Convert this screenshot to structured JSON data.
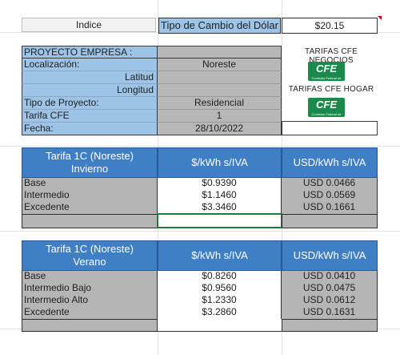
{
  "header": {
    "indice_label": "Indice",
    "exchange_label": "Tipo de Cambio del Dólar",
    "exchange_value": "$20.15"
  },
  "project": {
    "title": "PROYECTO EMPRESA :",
    "rows": [
      {
        "label": "Localización:",
        "value": "Noreste"
      },
      {
        "label": "Latitud",
        "value": ""
      },
      {
        "label": "Longitud",
        "value": ""
      },
      {
        "label": "Tipo de Proyecto:",
        "value": "Residencial"
      },
      {
        "label": "Tarifa CFE",
        "value": "1"
      },
      {
        "label": "Fecha:",
        "value": "28/10/2022"
      }
    ]
  },
  "cfe": {
    "negocios_label": "TARIFAS CFE NEGOCIOS",
    "hogar_label": "TARIFAS CFE HOGAR",
    "logo_text": "CFE",
    "logo_subtext": "Comisión Federal de Electricidad"
  },
  "invierno": {
    "title_line1": "Tarifa 1C (Noreste)",
    "title_line2": "Invierno",
    "col_mxn": "$/kWh s/IVA",
    "col_usd": "USD/kWh s/IVA",
    "rows": [
      {
        "label": "Base",
        "mxn": "$0.9390",
        "usd": "USD 0.0466"
      },
      {
        "label": "Intermedio",
        "mxn": "$1.1460",
        "usd": "USD 0.0569"
      },
      {
        "label": "Excedente",
        "mxn": "$3.3460",
        "usd": "USD 0.1661"
      }
    ]
  },
  "verano": {
    "title_line1": "Tarifa 1C (Noreste)",
    "title_line2": "Verano",
    "col_mxn": "$/kWh s/IVA",
    "col_usd": "USD/kWh s/IVA",
    "rows": [
      {
        "label": "Base",
        "mxn": "$0.8260",
        "usd": "USD 0.0410"
      },
      {
        "label": "Intermedio Bajo",
        "mxn": "$0.9560",
        "usd": "USD 0.0475"
      },
      {
        "label": "Intermedio Alto",
        "mxn": "$1.2330",
        "usd": "USD 0.0612"
      },
      {
        "label": "Excedente",
        "mxn": "$3.2860",
        "usd": "USD 0.1631"
      }
    ]
  }
}
